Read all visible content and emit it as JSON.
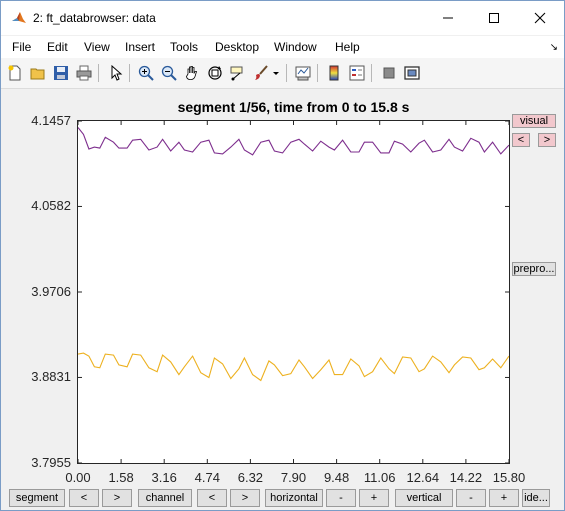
{
  "window": {
    "title": "2: ft_databrowser: data",
    "controls": {
      "minimize": "—",
      "maximize": "☐",
      "close": "✕"
    }
  },
  "menu": {
    "items": [
      "File",
      "Edit",
      "View",
      "Insert",
      "Tools",
      "Desktop",
      "Window",
      "Help"
    ],
    "overflow_arrow": "↘"
  },
  "toolbar": {
    "icons": [
      "new-figure-icon",
      "open-file-icon",
      "save-icon",
      "print-icon",
      "pointer-icon",
      "zoom-in-icon",
      "zoom-out-icon",
      "pan-hand-icon",
      "rotate-3d-icon",
      "data-cursor-icon",
      "brush-icon",
      "brush-dropdown-icon",
      "link-plot-icon",
      "insert-colorbar-icon",
      "insert-legend-icon",
      "hide-plot-tools-icon",
      "show-plot-tools-icon"
    ]
  },
  "plot": {
    "title": "segment 1/56, time from 0 to 15.8 s"
  },
  "side_buttons": {
    "visual": "visual",
    "prev": "<",
    "next": ">",
    "preproc": "prepro..."
  },
  "bottom_buttons": {
    "segment": "segment",
    "segment_prev": "<",
    "segment_next": ">",
    "channel": "channel",
    "channel_prev": "<",
    "channel_next": ">",
    "horizontal": "horizontal",
    "horizontal_minus": "-",
    "horizontal_plus": "+",
    "vertical": "vertical",
    "vertical_minus": "-",
    "vertical_plus": "+",
    "identify": "ide..."
  },
  "chart_data": {
    "type": "line",
    "title": "segment 1/56, time from 0 to 15.8 s",
    "xlabel": "",
    "ylabel": "",
    "xlim": [
      0,
      15.8
    ],
    "ylim": [
      3.7955,
      4.1457
    ],
    "xticks": [
      "0.00",
      "1.58",
      "3.16",
      "4.74",
      "6.32",
      "7.90",
      "9.48",
      "11.06",
      "12.64",
      "14.22",
      "15.80"
    ],
    "yticks": [
      "4.1457",
      "4.0582",
      "3.9706",
      "3.8831",
      "3.7955"
    ],
    "grid": false,
    "legend": "none",
    "series": [
      {
        "color": "#7e2f8e",
        "x": [
          0.0,
          0.2,
          0.4,
          0.6,
          0.8,
          1.0,
          1.3,
          1.5,
          1.8,
          2.0,
          2.3,
          2.6,
          2.9,
          3.1,
          3.4,
          3.7,
          3.9,
          4.2,
          4.5,
          4.8,
          5.0,
          5.3,
          5.6,
          5.9,
          6.1,
          6.4,
          6.7,
          7.0,
          7.2,
          7.5,
          7.8,
          8.1,
          8.3,
          8.6,
          8.9,
          9.2,
          9.4,
          9.7,
          10.0,
          10.3,
          10.5,
          10.8,
          11.1,
          11.4,
          11.6,
          11.9,
          12.2,
          12.5,
          12.7,
          13.0,
          13.3,
          13.6,
          13.8,
          14.1,
          14.4,
          14.7,
          14.9,
          15.2,
          15.5,
          15.8
        ],
        "y": [
          4.139,
          4.132,
          4.117,
          4.119,
          4.118,
          4.129,
          4.124,
          4.118,
          4.118,
          4.126,
          4.127,
          4.116,
          4.119,
          4.127,
          4.115,
          4.124,
          4.116,
          4.114,
          4.124,
          4.126,
          4.113,
          4.112,
          4.119,
          4.127,
          4.116,
          4.111,
          4.124,
          4.126,
          4.115,
          4.113,
          4.124,
          4.127,
          4.122,
          4.115,
          4.125,
          4.119,
          4.116,
          4.126,
          4.114,
          4.114,
          4.124,
          4.124,
          4.113,
          4.113,
          4.125,
          4.122,
          4.114,
          4.123,
          4.126,
          4.114,
          4.116,
          4.127,
          4.119,
          4.115,
          4.128,
          4.124,
          4.114,
          4.124,
          4.112,
          4.121
        ]
      },
      {
        "color": "#edb120",
        "x": [
          0.0,
          0.2,
          0.4,
          0.6,
          0.8,
          1.0,
          1.3,
          1.5,
          1.8,
          2.0,
          2.3,
          2.6,
          2.9,
          3.1,
          3.4,
          3.7,
          3.9,
          4.2,
          4.5,
          4.8,
          5.0,
          5.3,
          5.6,
          5.9,
          6.1,
          6.4,
          6.7,
          7.0,
          7.2,
          7.5,
          7.8,
          8.1,
          8.3,
          8.6,
          8.9,
          9.2,
          9.4,
          9.7,
          10.0,
          10.3,
          10.5,
          10.8,
          11.1,
          11.4,
          11.6,
          11.9,
          12.2,
          12.5,
          12.7,
          13.0,
          13.3,
          13.6,
          13.8,
          14.1,
          14.4,
          14.7,
          14.9,
          15.2,
          15.5,
          15.8
        ],
        "y": [
          3.907,
          3.908,
          3.905,
          3.894,
          3.893,
          3.907,
          3.906,
          3.896,
          3.894,
          3.907,
          3.906,
          3.893,
          3.889,
          3.906,
          3.899,
          3.886,
          3.894,
          3.905,
          3.888,
          3.883,
          3.903,
          3.897,
          3.882,
          3.892,
          3.903,
          3.886,
          3.88,
          3.9,
          3.896,
          3.885,
          3.887,
          3.901,
          3.894,
          3.882,
          3.891,
          3.901,
          3.886,
          3.886,
          3.902,
          3.895,
          3.884,
          3.889,
          3.903,
          3.892,
          3.887,
          3.904,
          3.903,
          3.889,
          3.892,
          3.905,
          3.899,
          3.888,
          3.896,
          3.904,
          3.903,
          3.891,
          3.893,
          3.902,
          3.893,
          3.905
        ]
      }
    ]
  }
}
